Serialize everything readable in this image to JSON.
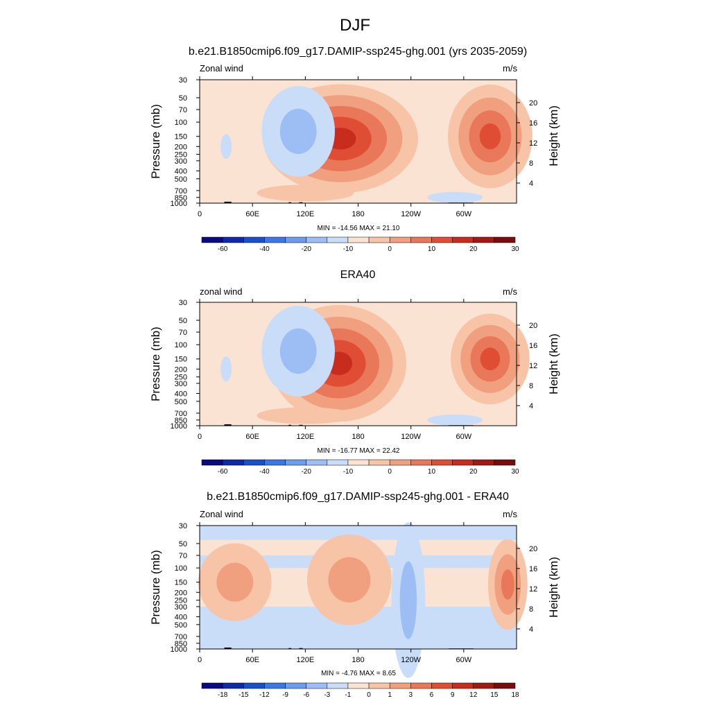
{
  "main_title": "DJF",
  "colors": {
    "level_palette": [
      "#0a0a82",
      "#0f2aa8",
      "#1a50cc",
      "#3a78e6",
      "#6b9cf0",
      "#9dbef5",
      "#c9dcf8",
      "#fbe3d4",
      "#f7c4a8",
      "#f1a07f",
      "#e9775a",
      "#df4d35",
      "#c72c1c",
      "#a31a12",
      "#7a0c0c"
    ],
    "land": "#000000"
  },
  "chart_data": [
    {
      "type": "heatmap",
      "title": "b.e21.B1850cmip6.f09_g17.DAMIP-ssp245-ghg.001 (yrs 2035-2059)",
      "left_label": "Zonal wind",
      "right_label": "m/s",
      "ylabel": "Pressure (mb)",
      "ylabel_right": "Height (km)",
      "x_ticks": [
        "0",
        "60E",
        "120E",
        "180",
        "120W",
        "60W"
      ],
      "y_ticks": [
        "30",
        "50",
        "70",
        "100",
        "150",
        "200",
        "250",
        "300",
        "400",
        "500",
        "700",
        "850",
        "1000"
      ],
      "height_ticks": [
        "20",
        "16",
        "12",
        "8",
        "4"
      ],
      "stats": "MIN = -14.56  MAX =  21.10",
      "colorbar_labels": [
        "-60",
        "-40",
        "-20",
        "-10",
        "0",
        "10",
        "20",
        "30"
      ],
      "xlim": [
        0,
        360
      ],
      "ylim": [
        1000,
        30
      ],
      "y_scale": "log",
      "features": [
        {
          "type": "jet",
          "center_lon": 160,
          "center_p": 160,
          "peak": 21,
          "width_lon": 55,
          "width_logp": 0.42
        },
        {
          "type": "jet",
          "center_lon": 330,
          "center_p": 150,
          "peak": 20,
          "width_lon": 30,
          "width_logp": 0.4
        },
        {
          "type": "easterly",
          "center_lon": 112,
          "center_p": 130,
          "peak": -12,
          "width_lon": 26,
          "width_logp": 0.35
        }
      ],
      "min": -14.56,
      "max": 21.1
    },
    {
      "type": "heatmap",
      "title": "ERA40",
      "left_label": "zonal wind",
      "right_label": "m/s",
      "ylabel": "Pressure (mb)",
      "ylabel_right": "Height (km)",
      "x_ticks": [
        "0",
        "60E",
        "120E",
        "180",
        "120W",
        "60W"
      ],
      "y_ticks": [
        "30",
        "50",
        "70",
        "100",
        "150",
        "200",
        "250",
        "300",
        "400",
        "500",
        "700",
        "850",
        "1000"
      ],
      "height_ticks": [
        "20",
        "16",
        "12",
        "8",
        "4"
      ],
      "stats": "MIN = -16.77  MAX =  22.42",
      "colorbar_labels": [
        "-60",
        "-40",
        "-20",
        "-10",
        "0",
        "10",
        "20",
        "30"
      ],
      "xlim": [
        0,
        360
      ],
      "ylim": [
        1000,
        30
      ],
      "y_scale": "log",
      "features": [
        {
          "type": "jet",
          "center_lon": 158,
          "center_p": 170,
          "peak": 22,
          "width_lon": 48,
          "width_logp": 0.45
        },
        {
          "type": "jet",
          "center_lon": 330,
          "center_p": 150,
          "peak": 16,
          "width_lon": 28,
          "width_logp": 0.35
        },
        {
          "type": "easterly",
          "center_lon": 112,
          "center_p": 120,
          "peak": -15,
          "width_lon": 26,
          "width_logp": 0.35
        }
      ],
      "min": -16.77,
      "max": 22.42
    },
    {
      "type": "heatmap",
      "title": "b.e21.B1850cmip6.f09_g17.DAMIP-ssp245-ghg.001 - ERA40",
      "left_label": "Zonal wind",
      "right_label": "m/s",
      "ylabel": "Pressure (mb)",
      "ylabel_right": "Height (km)",
      "x_ticks": [
        "0",
        "60E",
        "120E",
        "180",
        "120W",
        "60W"
      ],
      "y_ticks": [
        "30",
        "50",
        "70",
        "100",
        "150",
        "200",
        "250",
        "300",
        "400",
        "500",
        "700",
        "850",
        "1000"
      ],
      "height_ticks": [
        "20",
        "16",
        "12",
        "8",
        "4"
      ],
      "stats": "MIN =  -4.76  MAX =   8.65",
      "colorbar_labels": [
        "-18",
        "-15",
        "-12",
        "-9",
        "-6",
        "-3",
        "-1",
        "0",
        "1",
        "3",
        "6",
        "9",
        "12",
        "15",
        "18"
      ],
      "xlim": [
        0,
        360
      ],
      "ylim": [
        1000,
        30
      ],
      "y_scale": "log",
      "features": [
        {
          "type": "positive",
          "center_lon": 170,
          "center_p": 140,
          "peak": 4,
          "width_lon": 30,
          "width_logp": 0.35
        },
        {
          "type": "positive",
          "center_lon": 350,
          "center_p": 160,
          "peak": 8.5,
          "width_lon": 14,
          "width_logp": 0.35
        },
        {
          "type": "negative",
          "center_lon": 237,
          "center_p": 250,
          "peak": -4.5,
          "width_lon": 12,
          "width_logp": 0.6
        }
      ],
      "min": -4.76,
      "max": 8.65
    }
  ]
}
